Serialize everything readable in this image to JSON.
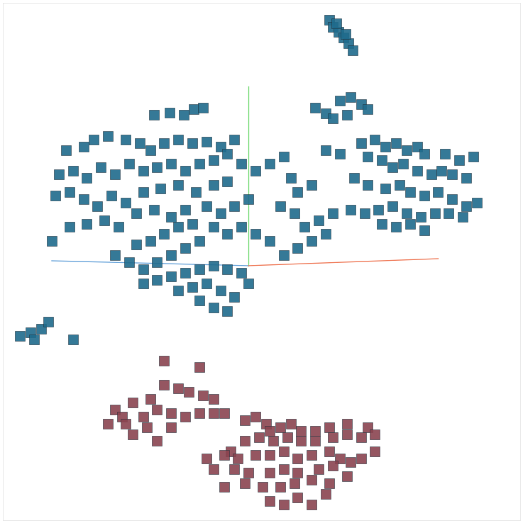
{
  "chart_data": {
    "type": "scatter",
    "tick_labels": false,
    "xlim": [
      0,
      737
    ],
    "ylim": [
      738,
      0
    ],
    "xticks": [],
    "yticks": [],
    "series": [
      {
        "color": "#1f6b8c",
        "marker": "square",
        "x": [
          465,
          470,
          478,
          485,
          492,
          498,
          475,
          488,
          215,
          238,
          258,
          272,
          285,
          90,
          115,
          130,
          150,
          175,
          195,
          210,
          230,
          250,
          270,
          290,
          310,
          330,
          80,
          100,
          120,
          140,
          160,
          180,
          200,
          220,
          240,
          260,
          280,
          300,
          320,
          340,
          75,
          95,
          115,
          135,
          155,
          175,
          200,
          225,
          250,
          275,
          300,
          320,
          70,
          95,
          120,
          145,
          165,
          190,
          215,
          240,
          260,
          290,
          310,
          330,
          350,
          360,
          380,
          400,
          410,
          420,
          440,
          395,
          415,
          430,
          450,
          470,
          460,
          440,
          420,
          400,
          380,
          360,
          340,
          320,
          300,
          280,
          260,
          240,
          220,
          200,
          180,
          160,
          190,
          210,
          230,
          250,
          270,
          200,
          220,
          240,
          260,
          280,
          300,
          320,
          340,
          250,
          270,
          290,
          310,
          330,
          350,
          300,
          320,
          280,
          445,
          460,
          480,
          495,
          510,
          520,
          470,
          490,
          460,
          480,
          510,
          530,
          545,
          560,
          575,
          590,
          600,
          630,
          650,
          670,
          520,
          540,
          555,
          570,
          590,
          610,
          625,
          640,
          660,
          500,
          520,
          545,
          565,
          580,
          600,
          620,
          640,
          660,
          675,
          495,
          515,
          535,
          555,
          575,
          595,
          615,
          635,
          655,
          540,
          560,
          580,
          600,
          25,
          40,
          55,
          65,
          45,
          100
        ],
        "y": [
          25,
          35,
          42,
          50,
          58,
          68,
          30,
          45,
          160,
          157,
          160,
          152,
          150,
          210,
          205,
          195,
          190,
          195,
          200,
          210,
          200,
          195,
          200,
          198,
          205,
          195,
          245,
          240,
          250,
          235,
          245,
          230,
          240,
          235,
          230,
          240,
          230,
          225,
          215,
          230,
          275,
          270,
          280,
          290,
          275,
          285,
          270,
          265,
          260,
          270,
          260,
          255,
          340,
          320,
          315,
          310,
          320,
          300,
          295,
          305,
          295,
          290,
          300,
          290,
          280,
          240,
          230,
          220,
          250,
          270,
          260,
          290,
          300,
          320,
          310,
          300,
          330,
          340,
          350,
          360,
          340,
          330,
          320,
          330,
          320,
          340,
          350,
          360,
          370,
          380,
          370,
          360,
          345,
          340,
          330,
          320,
          315,
          400,
          395,
          390,
          385,
          380,
          375,
          380,
          385,
          410,
          405,
          400,
          410,
          420,
          400,
          435,
          440,
          425,
          150,
          158,
          140,
          135,
          145,
          152,
          165,
          160,
          210,
          215,
          200,
          195,
          205,
          200,
          210,
          205,
          215,
          215,
          225,
          220,
          220,
          225,
          235,
          230,
          240,
          245,
          240,
          245,
          250,
          250,
          260,
          265,
          260,
          270,
          275,
          270,
          280,
          290,
          285,
          295,
          300,
          295,
          290,
          300,
          305,
          300,
          300,
          305,
          315,
          320,
          315,
          325,
          475,
          470,
          465,
          455,
          480,
          480
        ]
      },
      {
        "color": "#8a4450",
        "marker": "square",
        "x": [
          230,
          280,
          230,
          250,
          265,
          285,
          300,
          210,
          185,
          160,
          170,
          200,
          220,
          240,
          260,
          280,
          300,
          315,
          150,
          175,
          205,
          240,
          185,
          220,
          345,
          360,
          375,
          380,
          395,
          410,
          425,
          445,
          465,
          490,
          520,
          325,
          345,
          365,
          385,
          405,
          425,
          445,
          470,
          490,
          510,
          530,
          290,
          315,
          335,
          360,
          380,
          400,
          420,
          440,
          465,
          480,
          510,
          530,
          300,
          330,
          350,
          380,
          400,
          420,
          450,
          470,
          495,
          315,
          345,
          370,
          395,
          415,
          440,
          465,
          490,
          380,
          400,
          420,
          440,
          460
        ],
        "y": [
          510,
          520,
          545,
          550,
          555,
          560,
          565,
          565,
          570,
          580,
          590,
          590,
          580,
          585,
          590,
          585,
          585,
          585,
          600,
          600,
          605,
          605,
          615,
          625,
          595,
          590,
          600,
          610,
          605,
          600,
          610,
          610,
          605,
          600,
          605,
          640,
          625,
          620,
          625,
          620,
          625,
          625,
          620,
          615,
          620,
          615,
          650,
          645,
          650,
          645,
          645,
          640,
          650,
          645,
          640,
          650,
          650,
          640,
          665,
          665,
          670,
          670,
          665,
          670,
          665,
          660,
          655,
          690,
          685,
          690,
          690,
          685,
          680,
          685,
          675,
          710,
          715,
          705,
          715,
          700
        ]
      }
    ]
  }
}
